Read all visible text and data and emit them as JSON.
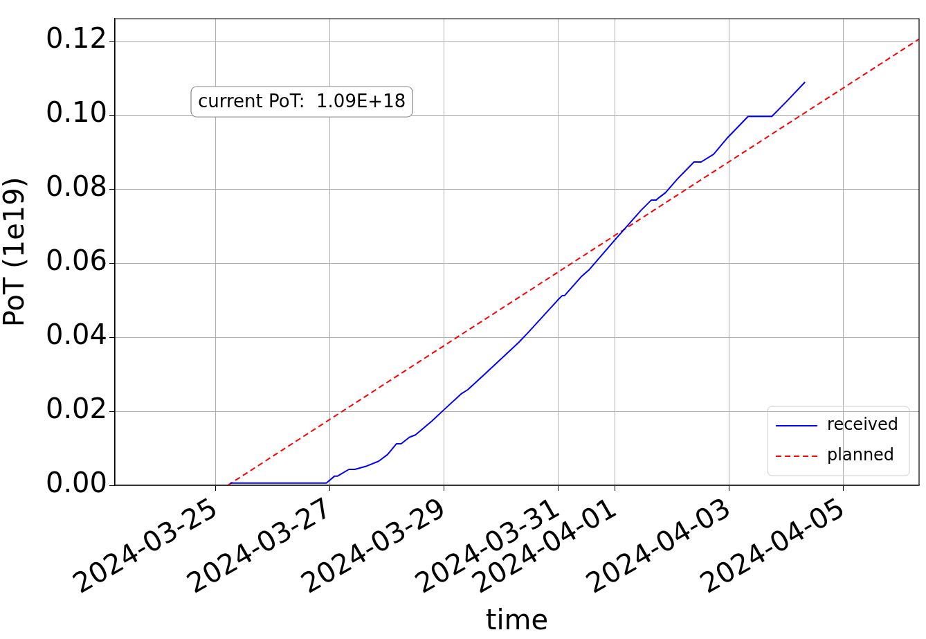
{
  "chart_data": {
    "type": "line",
    "xlabel": "time",
    "ylabel": "PoT (1e19)",
    "xlim": [
      "2024-03-23T05:30",
      "2024-04-06T08:00"
    ],
    "xticks": [
      "2024-03-25",
      "2024-03-27",
      "2024-03-29",
      "2024-03-31",
      "2024-04-01",
      "2024-04-03",
      "2024-04-05"
    ],
    "ylim": [
      0,
      0.126
    ],
    "yticks": [
      {
        "value": 0,
        "label": "0.00"
      },
      {
        "value": 0.02,
        "label": "0.02"
      },
      {
        "value": 0.04,
        "label": "0.04"
      },
      {
        "value": 0.06,
        "label": "0.06"
      },
      {
        "value": 0.08,
        "label": "0.08"
      },
      {
        "value": 0.1,
        "label": "0.10"
      },
      {
        "value": 0.12,
        "label": "0.12"
      }
    ],
    "grid": true,
    "legend": "bottom right",
    "marker": "none",
    "annotations": [
      "current PoT:  1.09E+18"
    ],
    "series": [
      {
        "name": "received",
        "color": "#0000ff",
        "line_style": "solid",
        "x": [
          "2024-03-25T06:00",
          "2024-03-26T22:30",
          "2024-03-27T02:00",
          "2024-03-27T03:15",
          "2024-03-27T08:00",
          "2024-03-27T10:30",
          "2024-03-27T15:30",
          "2024-03-27T20:30",
          "2024-03-28T00:15",
          "2024-03-28T04:00",
          "2024-03-28T06:00",
          "2024-03-28T09:30",
          "2024-03-28T12:00",
          "2024-03-28T19:00",
          "2024-03-29T00:00",
          "2024-03-29T07:30",
          "2024-03-29T10:00",
          "2024-03-29T17:00",
          "2024-03-30T07:30",
          "2024-03-30T11:30",
          "2024-03-30T23:45",
          "2024-03-31T01:45",
          "2024-03-31T02:45",
          "2024-03-31T09:45",
          "2024-03-31T13:15",
          "2024-03-31T23:45",
          "2024-04-01T10:45",
          "2024-04-01T15:15",
          "2024-04-01T17:15",
          "2024-04-01T18:45",
          "2024-04-01T21:15",
          "2024-04-02T02:15",
          "2024-04-02T09:15",
          "2024-04-02T12:15",
          "2024-04-02T17:30",
          "2024-04-02T23:00",
          "2024-04-03T08:00",
          "2024-04-03T18:00",
          "2024-04-04T00:00",
          "2024-04-04T08:00"
        ],
        "values": [
          0.0006,
          0.0006,
          0.0025,
          0.0025,
          0.0043,
          0.0043,
          0.0052,
          0.0065,
          0.0083,
          0.0112,
          0.0112,
          0.013,
          0.0136,
          0.0174,
          0.0204,
          0.0248,
          0.0258,
          0.0299,
          0.0386,
          0.0413,
          0.0499,
          0.0512,
          0.0512,
          0.0563,
          0.0583,
          0.0661,
          0.0741,
          0.077,
          0.077,
          0.0778,
          0.079,
          0.0827,
          0.0873,
          0.0873,
          0.0894,
          0.0936,
          0.0996,
          0.0996,
          0.1035,
          0.1089
        ]
      },
      {
        "name": "planned",
        "color": "#ff0000",
        "line_style": "dashed",
        "x": [
          "2024-03-25T05:00",
          "2024-04-06T08:00"
        ],
        "values": [
          0,
          0.1205
        ]
      }
    ]
  }
}
